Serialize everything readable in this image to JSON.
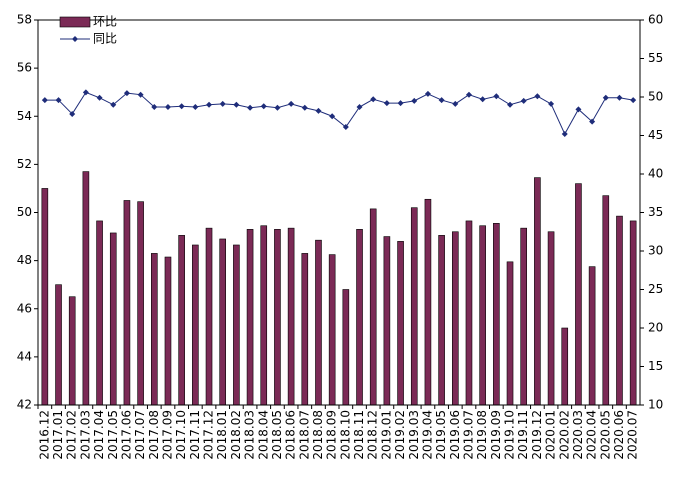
{
  "chart_data": {
    "type": "bar-line",
    "categories": [
      "2016.12",
      "2017.01",
      "2017.02",
      "2017.03",
      "2017.04",
      "2017.05",
      "2017.06",
      "2017.07",
      "2017.08",
      "2017.09",
      "2017.10",
      "2017.11",
      "2017.12",
      "2018.01",
      "2018.02",
      "2018.03",
      "2018.04",
      "2018.05",
      "2018.06",
      "2018.07",
      "2018.08",
      "2018.09",
      "2018.10",
      "2018.11",
      "2018.12",
      "2019.01",
      "2019.02",
      "2019.03",
      "2019.04",
      "2019.05",
      "2019.06",
      "2019.07",
      "2019.08",
      "2019.09",
      "2019.10",
      "2019.11",
      "2019.12",
      "2020.01",
      "2020.02",
      "2020.03",
      "2020.04",
      "2020.05",
      "2020.06",
      "2020.07"
    ],
    "series": [
      {
        "name": "环比",
        "type": "bar",
        "color": "#7b2a56",
        "values": [
          51.0,
          47.0,
          46.5,
          51.7,
          49.65,
          49.15,
          50.5,
          50.45,
          48.3,
          48.15,
          49.05,
          48.65,
          49.35,
          48.9,
          48.65,
          49.3,
          49.45,
          49.3,
          49.35,
          48.3,
          48.85,
          48.25,
          46.8,
          49.3,
          50.15,
          49.0,
          48.8,
          50.2,
          50.55,
          49.05,
          49.2,
          49.65,
          49.45,
          49.55,
          47.95,
          49.35,
          51.45,
          49.2,
          45.2,
          51.2,
          47.75,
          50.7,
          49.85,
          49.65
        ]
      },
      {
        "name": "同比",
        "type": "line",
        "axis": "y2",
        "color": "#1f2d7a",
        "values": [
          49.6,
          49.6,
          47.8,
          50.6,
          49.9,
          49.0,
          50.5,
          50.3,
          48.7,
          48.7,
          48.8,
          48.7,
          49.0,
          49.1,
          49.0,
          48.6,
          48.8,
          48.6,
          49.1,
          48.6,
          48.2,
          47.5,
          46.1,
          48.7,
          49.7,
          49.2,
          49.2,
          49.5,
          50.4,
          49.6,
          49.1,
          50.3,
          49.7,
          50.1,
          49.0,
          49.5,
          50.1,
          49.1,
          45.2,
          48.4,
          46.8,
          49.9,
          49.9,
          49.6
        ]
      }
    ],
    "ylim": [
      42,
      58
    ],
    "yticks": [
      42,
      44,
      46,
      48,
      50,
      52,
      54,
      56,
      58
    ],
    "y2lim": [
      10,
      60
    ],
    "y2ticks": [
      10,
      15,
      20,
      25,
      30,
      35,
      40,
      45,
      50,
      55,
      60
    ],
    "grid": false,
    "legend": "top-left"
  }
}
